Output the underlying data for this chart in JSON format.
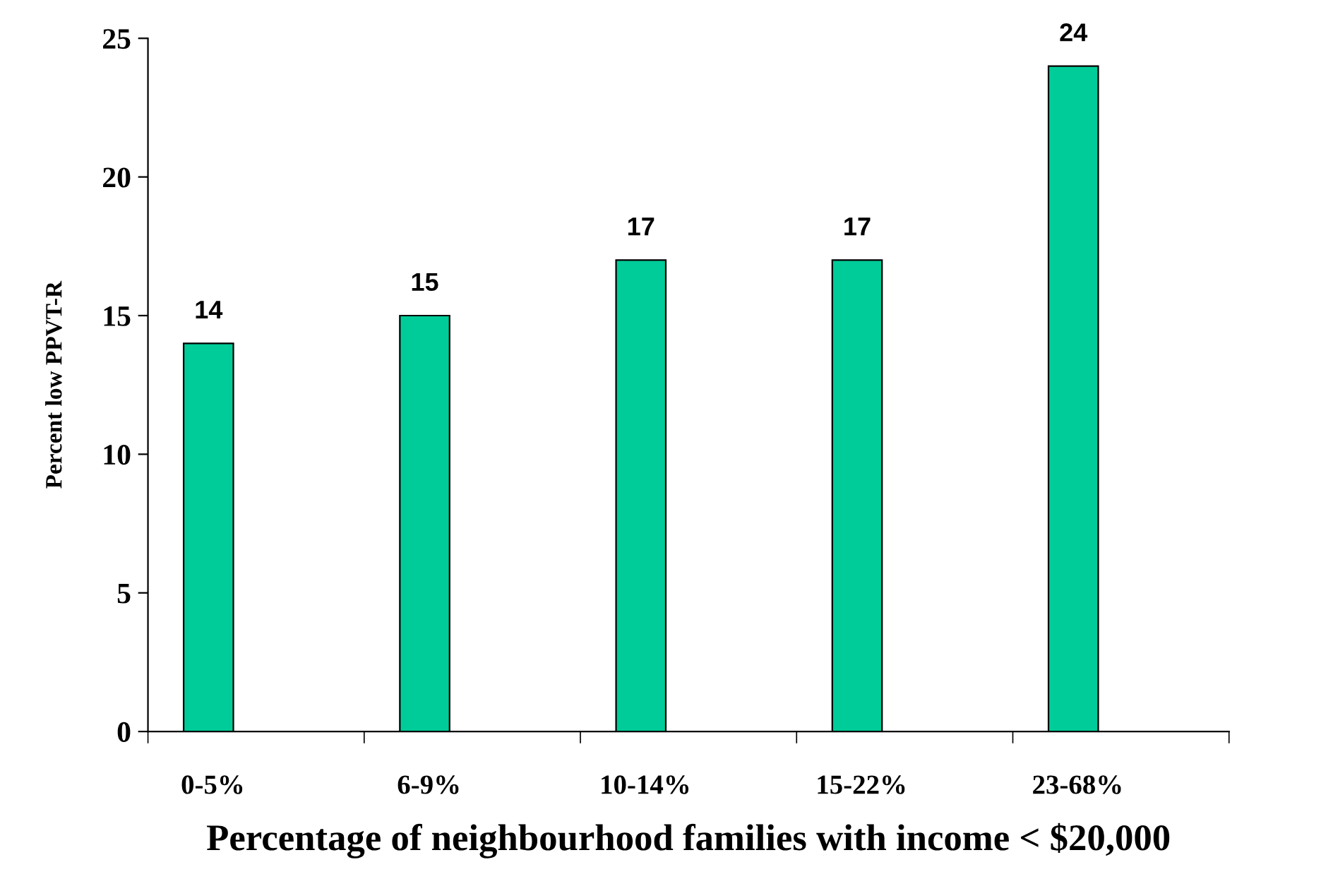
{
  "chart_data": {
    "type": "bar",
    "xlabel": "Percentage of neighbourhood families with income < $20,000",
    "ylabel": "Percent low PPVT-R",
    "categories": [
      "0-5%",
      "6-9%",
      "10-14%",
      "15-22%",
      "23-68%"
    ],
    "values": [
      14,
      15,
      17,
      17,
      24
    ],
    "color": "#00cc99",
    "data_labels": true,
    "ylim": [
      0,
      25
    ],
    "yticks": [
      0,
      5,
      10,
      15,
      20,
      25
    ],
    "grid": false,
    "legend": false
  }
}
